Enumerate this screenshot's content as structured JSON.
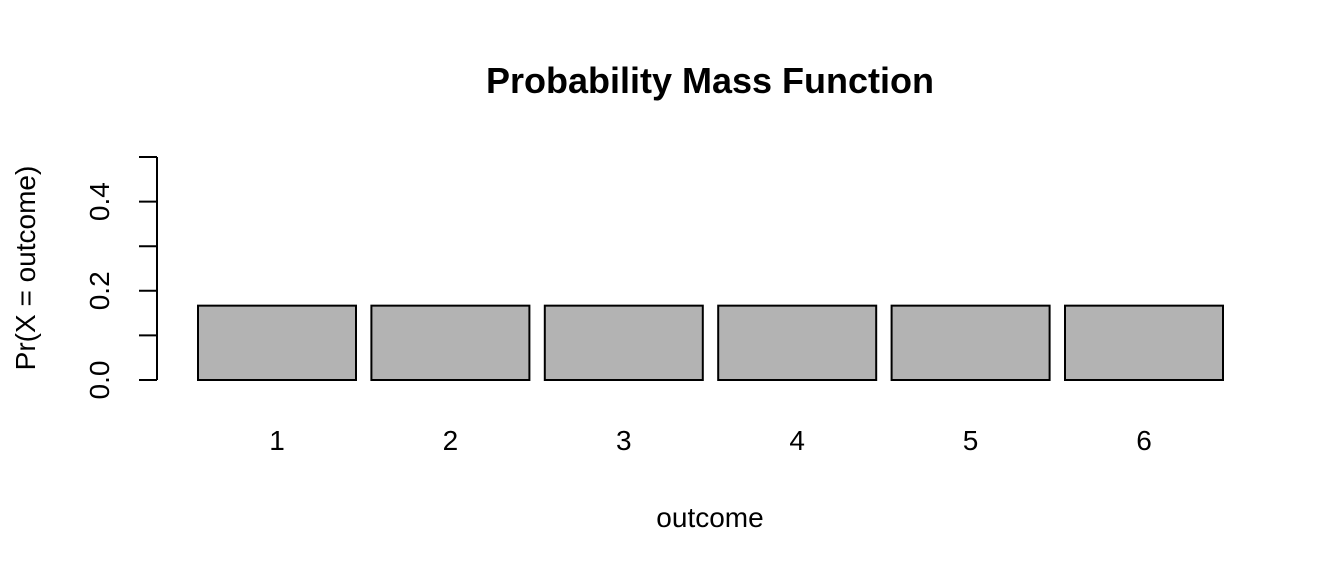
{
  "chart_data": {
    "type": "bar",
    "title": "Probability Mass Function",
    "xlabel": "outcome",
    "ylabel": "Pr(X = outcome)",
    "categories": [
      "1",
      "2",
      "3",
      "4",
      "5",
      "6"
    ],
    "values": [
      0.1667,
      0.1667,
      0.1667,
      0.1667,
      0.1667,
      0.1667
    ],
    "ylim": [
      0,
      0.5
    ],
    "yticks": [
      0.0,
      0.1,
      0.2,
      0.3,
      0.4,
      0.5
    ],
    "ytick_labels": [
      "0.0",
      "0.2",
      "0.4"
    ],
    "grid": false,
    "legend": "none",
    "bar_color": "#b3b3b3",
    "border_color": "#000000"
  }
}
